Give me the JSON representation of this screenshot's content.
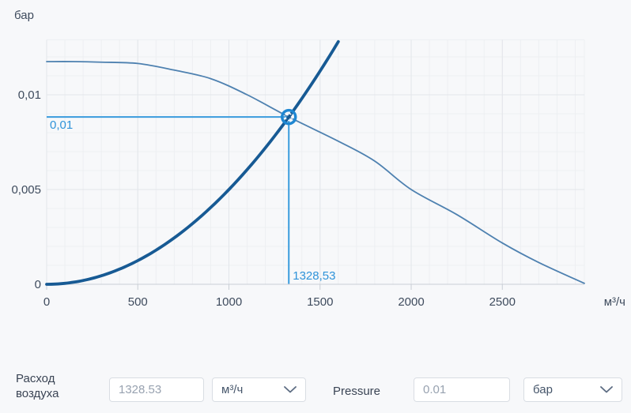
{
  "page": {
    "background": "#f7f8fa"
  },
  "chart_data": {
    "type": "line",
    "title": "",
    "ylabel": "бар",
    "xlabel": "м³/ч",
    "xlim": [
      0,
      2950
    ],
    "ylim": [
      0,
      0.0129
    ],
    "grid": true,
    "x_minor_step": 100,
    "y_minor_step": 0.001,
    "x_ticks": [
      {
        "v": 0,
        "label": "0"
      },
      {
        "v": 500,
        "label": "500"
      },
      {
        "v": 1000,
        "label": "1000"
      },
      {
        "v": 1500,
        "label": "1500"
      },
      {
        "v": 2000,
        "label": "2000"
      },
      {
        "v": 2500,
        "label": "2500"
      }
    ],
    "y_ticks": [
      {
        "v": 0,
        "label": "0"
      },
      {
        "v": 0.005,
        "label": "0,005"
      },
      {
        "v": 0.01,
        "label": "0,01"
      }
    ],
    "series": [
      {
        "name": "fan-pressure-curve",
        "style": "thin",
        "points": [
          [
            0,
            0.01175
          ],
          [
            150,
            0.01175
          ],
          [
            300,
            0.01172
          ],
          [
            500,
            0.01165
          ],
          [
            700,
            0.0113
          ],
          [
            900,
            0.01085
          ],
          [
            1100,
            0.01
          ],
          [
            1328.53,
            0.00883
          ],
          [
            1600,
            0.00755
          ],
          [
            1800,
            0.0065
          ],
          [
            2000,
            0.005
          ],
          [
            2250,
            0.00368
          ],
          [
            2500,
            0.00218
          ],
          [
            2700,
            0.00115
          ],
          [
            2950,
            5e-05
          ]
        ]
      },
      {
        "name": "system-resistance-curve",
        "style": "thick",
        "quadratic_coefficient": 5e-09,
        "x_range": [
          0,
          1615
        ]
      }
    ],
    "operating_point": {
      "x": 1328.53,
      "y": 0.00883,
      "x_label": "1328,53",
      "y_label": "0,01"
    },
    "colors": {
      "fan_curve": "#4e81b0",
      "system_curve": "#175a94",
      "marker_line": "#399bdd",
      "marker_ring": "#1f87d2",
      "marker_label": "#2f93d9",
      "grid_minor": "#edeff2",
      "grid_major": "#e3e6ea",
      "axis": "#c9ced5",
      "tick_text": "#3e4b5d"
    }
  },
  "controls": {
    "flow": {
      "label": "Расход воздуха",
      "value": "1328.53",
      "unit": "м³/ч"
    },
    "pressure": {
      "label": "Pressure",
      "value": "0.01",
      "unit": "бар"
    }
  }
}
